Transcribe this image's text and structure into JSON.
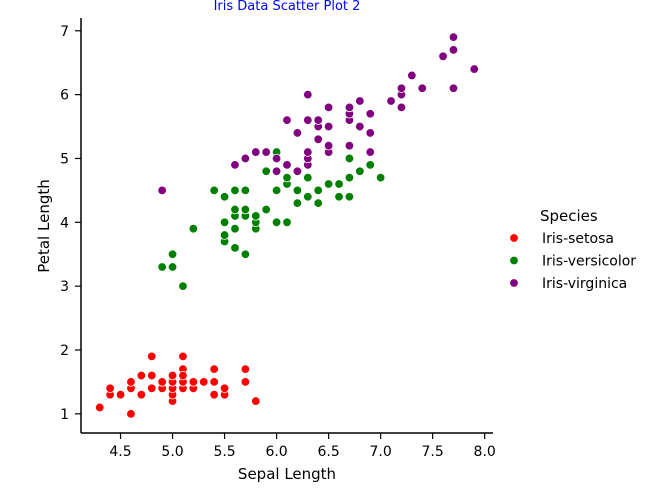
{
  "colors": {
    "title": "#0000ff",
    "axis": "#000000",
    "point_edge": "#ffffff"
  },
  "chart_data": {
    "type": "scatter",
    "title": "Iris Data Scatter Plot 2",
    "xlabel": "Sepal Length",
    "ylabel": "Petal Length",
    "xlim": [
      4.12,
      8.08
    ],
    "ylim": [
      0.7,
      7.2
    ],
    "xticks": [
      "4.5",
      "5.0",
      "5.5",
      "6.0",
      "6.5",
      "7.0",
      "7.5",
      "8.0"
    ],
    "yticks": [
      "1",
      "2",
      "3",
      "4",
      "5",
      "6",
      "7"
    ],
    "grid": false,
    "legend": {
      "title": "Species",
      "placement": "right"
    },
    "series": [
      {
        "name": "Iris-setosa",
        "color": "#ff0000",
        "points": [
          [
            4.3,
            1.1
          ],
          [
            4.4,
            1.3
          ],
          [
            4.4,
            1.4
          ],
          [
            4.5,
            1.3
          ],
          [
            4.6,
            1.0
          ],
          [
            4.6,
            1.4
          ],
          [
            4.6,
            1.5
          ],
          [
            4.7,
            1.3
          ],
          [
            4.7,
            1.6
          ],
          [
            4.8,
            1.4
          ],
          [
            4.8,
            1.6
          ],
          [
            4.8,
            1.9
          ],
          [
            4.9,
            1.4
          ],
          [
            4.9,
            1.5
          ],
          [
            5.0,
            1.2
          ],
          [
            5.0,
            1.3
          ],
          [
            5.0,
            1.4
          ],
          [
            5.0,
            1.5
          ],
          [
            5.0,
            1.6
          ],
          [
            5.1,
            1.4
          ],
          [
            5.1,
            1.5
          ],
          [
            5.1,
            1.7
          ],
          [
            5.1,
            1.9
          ],
          [
            5.1,
            1.6
          ],
          [
            5.2,
            1.4
          ],
          [
            5.2,
            1.5
          ],
          [
            5.3,
            1.5
          ],
          [
            5.4,
            1.3
          ],
          [
            5.4,
            1.5
          ],
          [
            5.4,
            1.7
          ],
          [
            5.5,
            1.3
          ],
          [
            5.5,
            1.4
          ],
          [
            5.7,
            1.5
          ],
          [
            5.7,
            1.7
          ],
          [
            5.8,
            1.2
          ]
        ]
      },
      {
        "name": "Iris-versicolor",
        "color": "#008000",
        "points": [
          [
            4.9,
            3.3
          ],
          [
            5.0,
            3.3
          ],
          [
            5.0,
            3.5
          ],
          [
            5.1,
            3.0
          ],
          [
            5.2,
            3.9
          ],
          [
            5.4,
            4.5
          ],
          [
            5.5,
            3.7
          ],
          [
            5.5,
            3.8
          ],
          [
            5.5,
            4.0
          ],
          [
            5.5,
            4.4
          ],
          [
            5.6,
            3.6
          ],
          [
            5.6,
            3.9
          ],
          [
            5.6,
            4.1
          ],
          [
            5.6,
            4.2
          ],
          [
            5.6,
            4.5
          ],
          [
            5.7,
            3.5
          ],
          [
            5.7,
            4.1
          ],
          [
            5.7,
            4.2
          ],
          [
            5.7,
            4.5
          ],
          [
            5.8,
            3.9
          ],
          [
            5.8,
            4.0
          ],
          [
            5.8,
            4.1
          ],
          [
            5.9,
            4.2
          ],
          [
            5.9,
            4.8
          ],
          [
            6.0,
            4.0
          ],
          [
            6.0,
            4.5
          ],
          [
            6.0,
            5.1
          ],
          [
            6.1,
            4.0
          ],
          [
            6.1,
            4.6
          ],
          [
            6.1,
            4.7
          ],
          [
            6.2,
            4.3
          ],
          [
            6.2,
            4.5
          ],
          [
            6.3,
            4.4
          ],
          [
            6.3,
            4.7
          ],
          [
            6.3,
            4.9
          ],
          [
            6.4,
            4.3
          ],
          [
            6.4,
            4.5
          ],
          [
            6.5,
            4.6
          ],
          [
            6.6,
            4.4
          ],
          [
            6.6,
            4.6
          ],
          [
            6.7,
            4.4
          ],
          [
            6.7,
            4.7
          ],
          [
            6.7,
            5.0
          ],
          [
            6.8,
            4.8
          ],
          [
            6.9,
            4.9
          ],
          [
            7.0,
            4.7
          ]
        ]
      },
      {
        "name": "Iris-virginica",
        "color": "#800080",
        "points": [
          [
            4.9,
            4.5
          ],
          [
            5.6,
            4.9
          ],
          [
            5.7,
            5.0
          ],
          [
            5.8,
            5.1
          ],
          [
            5.9,
            5.1
          ],
          [
            6.0,
            4.8
          ],
          [
            6.0,
            5.0
          ],
          [
            6.1,
            4.9
          ],
          [
            6.1,
            5.6
          ],
          [
            6.2,
            4.8
          ],
          [
            6.2,
            5.4
          ],
          [
            6.3,
            4.9
          ],
          [
            6.3,
            5.0
          ],
          [
            6.3,
            5.1
          ],
          [
            6.3,
            5.6
          ],
          [
            6.3,
            6.0
          ],
          [
            6.4,
            5.3
          ],
          [
            6.4,
            5.5
          ],
          [
            6.4,
            5.6
          ],
          [
            6.5,
            5.1
          ],
          [
            6.5,
            5.2
          ],
          [
            6.5,
            5.5
          ],
          [
            6.5,
            5.8
          ],
          [
            6.7,
            5.2
          ],
          [
            6.7,
            5.6
          ],
          [
            6.7,
            5.7
          ],
          [
            6.7,
            5.8
          ],
          [
            6.8,
            5.5
          ],
          [
            6.8,
            5.9
          ],
          [
            6.9,
            5.1
          ],
          [
            6.9,
            5.4
          ],
          [
            6.9,
            5.7
          ],
          [
            7.1,
            5.9
          ],
          [
            7.2,
            5.8
          ],
          [
            7.2,
            6.0
          ],
          [
            7.2,
            6.1
          ],
          [
            7.3,
            6.3
          ],
          [
            7.4,
            6.1
          ],
          [
            7.6,
            6.6
          ],
          [
            7.7,
            6.1
          ],
          [
            7.7,
            6.7
          ],
          [
            7.7,
            6.9
          ],
          [
            7.9,
            6.4
          ]
        ]
      }
    ]
  }
}
